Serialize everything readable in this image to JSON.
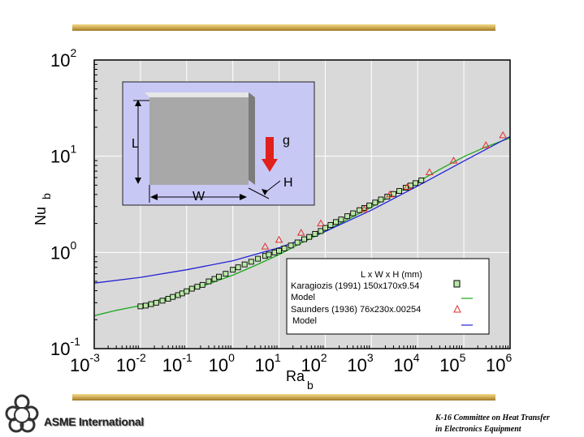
{
  "colors": {
    "plot_bg": "#d9d9d9",
    "gridline": "#ffffff",
    "inset_bg": "#c8c8f5",
    "block": "#a8a8a8",
    "gravity_arrow": "#e0201b",
    "karagiozis_model": "#1aa81a",
    "saunders_model": "#2323d6",
    "karagiozis_marker_fill": "#b9e7a6",
    "saunders_marker": "#e03030",
    "banner": "#c9a24a"
  },
  "chart_data": {
    "type": "scatter",
    "xscale": "log",
    "yscale": "log",
    "xlim": [
      0.001,
      1000000
    ],
    "ylim": [
      0.1,
      100
    ],
    "grid": true,
    "xlabel": "Ra",
    "xlabel_sub": "b",
    "ylabel": "Nu",
    "ylabel_sub": "b",
    "x_ticks": [
      {
        "base": "10",
        "exp": "-3",
        "value": 0.001
      },
      {
        "base": "10",
        "exp": "-2",
        "value": 0.01
      },
      {
        "base": "10",
        "exp": "-1",
        "value": 0.1
      },
      {
        "base": "10",
        "exp": "0",
        "value": 1
      },
      {
        "base": "10",
        "exp": "1",
        "value": 10
      },
      {
        "base": "10",
        "exp": "2",
        "value": 100
      },
      {
        "base": "10",
        "exp": "3",
        "value": 1000
      },
      {
        "base": "10",
        "exp": "4",
        "value": 10000
      },
      {
        "base": "10",
        "exp": "5",
        "value": 100000
      },
      {
        "base": "10",
        "exp": "6",
        "value": 1000000
      }
    ],
    "y_ticks": [
      {
        "base": "10",
        "exp": "-1",
        "value": 0.1
      },
      {
        "base": "10",
        "exp": "0",
        "value": 1
      },
      {
        "base": "10",
        "exp": "1",
        "value": 10
      },
      {
        "base": "10",
        "exp": "2",
        "value": 100
      }
    ],
    "legend": {
      "placement": "bottom-right",
      "title": "L x W x H (mm)",
      "entries": [
        "Karagiozis (1991) 150x170x9.54",
        "Model",
        "Saunders (1936) 76x230x.00254",
        "Model"
      ]
    },
    "series": [
      {
        "name": "Karagiozis (1991) 150x170x9.54",
        "kind": "points",
        "marker": "square",
        "x": [
          0.01,
          0.013,
          0.017,
          0.022,
          0.03,
          0.04,
          0.05,
          0.065,
          0.08,
          0.1,
          0.13,
          0.17,
          0.22,
          0.3,
          0.4,
          0.5,
          0.7,
          1,
          1.3,
          1.8,
          2.5,
          3.5,
          5,
          6,
          8,
          10,
          13,
          18,
          25,
          35,
          45,
          60,
          80,
          100,
          130,
          170,
          220,
          300,
          400,
          550,
          700,
          900,
          1200,
          1600,
          2200,
          3000,
          4000,
          5500,
          7000,
          9000,
          12000
        ],
        "y": [
          0.275,
          0.28,
          0.29,
          0.3,
          0.315,
          0.33,
          0.345,
          0.36,
          0.375,
          0.395,
          0.42,
          0.44,
          0.46,
          0.5,
          0.53,
          0.56,
          0.6,
          0.66,
          0.7,
          0.75,
          0.8,
          0.86,
          0.92,
          0.95,
          1.0,
          1.04,
          1.1,
          1.18,
          1.27,
          1.37,
          1.45,
          1.56,
          1.67,
          1.8,
          1.93,
          2.07,
          2.2,
          2.38,
          2.55,
          2.75,
          2.9,
          3.08,
          3.3,
          3.55,
          3.8,
          4.05,
          4.35,
          4.7,
          4.95,
          5.25,
          5.6
        ]
      },
      {
        "name": "Model",
        "kind": "line",
        "x": [
          0.001,
          0.003,
          0.01,
          0.03,
          0.1,
          0.3,
          1,
          3,
          10,
          30,
          100,
          300,
          1000,
          3000,
          10000,
          30000,
          100000,
          300000,
          1000000
        ],
        "y": [
          0.22,
          0.25,
          0.28,
          0.33,
          0.39,
          0.47,
          0.58,
          0.73,
          0.95,
          1.25,
          1.65,
          2.2,
          2.95,
          4.0,
          5.4,
          7.3,
          9.9,
          12.5,
          15.5
        ]
      },
      {
        "name": "Saunders (1936) 76x230x.00254",
        "kind": "points",
        "marker": "triangle",
        "x": [
          5,
          10,
          30,
          80,
          700,
          2500,
          6000,
          18000,
          60000,
          300000,
          700000
        ],
        "y": [
          1.15,
          1.35,
          1.6,
          2.0,
          2.8,
          4.0,
          4.8,
          6.8,
          9.0,
          13.0,
          16.5
        ]
      },
      {
        "name": "Model",
        "kind": "line",
        "x": [
          0.001,
          0.01,
          0.1,
          1,
          10,
          100,
          1000,
          10000,
          100000,
          1000000
        ],
        "y": [
          0.48,
          0.55,
          0.66,
          0.82,
          1.12,
          1.65,
          2.75,
          4.9,
          8.9,
          16.0
        ]
      }
    ]
  },
  "inset": {
    "dim_l": "L",
    "dim_w": "W",
    "dim_h": "H",
    "gravity": "g"
  },
  "footer": {
    "org": "ASME International",
    "committee_line1": "K-16 Committee on Heat Transfer",
    "committee_line2": "in Electronics Equipment"
  }
}
